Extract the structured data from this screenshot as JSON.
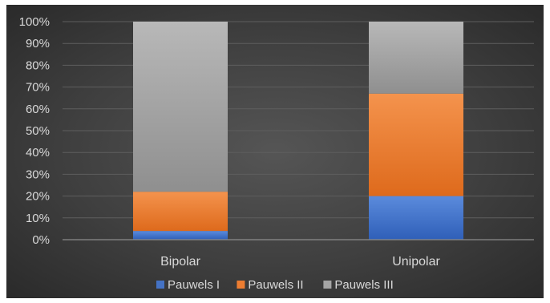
{
  "chart_data": {
    "type": "bar",
    "stacked": "percent",
    "categories": [
      "Bipolar",
      "Unipolar"
    ],
    "series": [
      {
        "name": "Pauwels I",
        "values": [
          4,
          20
        ],
        "color": "#4472c4"
      },
      {
        "name": "Pauwels II",
        "values": [
          18,
          47
        ],
        "color": "#ed7d31"
      },
      {
        "name": "Pauwels III",
        "values": [
          78,
          33
        ],
        "color": "#a5a5a5"
      }
    ],
    "y_ticks": [
      "0%",
      "10%",
      "20%",
      "30%",
      "40%",
      "50%",
      "60%",
      "70%",
      "80%",
      "90%",
      "100%"
    ],
    "ylim": [
      0,
      100
    ],
    "grid": true,
    "legend_position": "bottom",
    "title": "",
    "xlabel": "",
    "ylabel": ""
  }
}
